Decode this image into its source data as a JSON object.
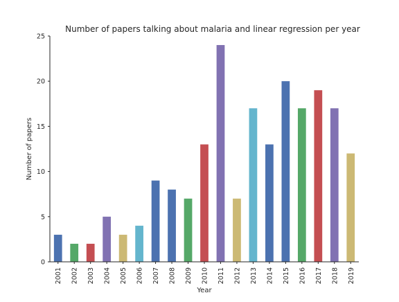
{
  "chart_data": {
    "type": "bar",
    "title": "Number of papers talking about malaria and linear regression per year",
    "xlabel": "Year",
    "ylabel": "Number of papers",
    "ylim": [
      0,
      25
    ],
    "yticks": [
      0,
      5,
      10,
      15,
      20,
      25
    ],
    "grid": false,
    "categories": [
      "2001",
      "2002",
      "2003",
      "2004",
      "2005",
      "2006",
      "2007",
      "2008",
      "2009",
      "2010",
      "2011",
      "2012",
      "2013",
      "2014",
      "2015",
      "2016",
      "2017",
      "2018",
      "2019"
    ],
    "values": [
      3,
      2,
      2,
      5,
      3,
      4,
      9,
      8,
      7,
      13,
      24,
      7,
      17,
      13,
      20,
      17,
      19,
      17,
      12
    ],
    "bar_colors": [
      "#4c72b0",
      "#55a868",
      "#c44e52",
      "#8172b2",
      "#ccb974",
      "#64b5cd",
      "#4c72b0",
      "#4c72b0",
      "#55a868",
      "#c44e52",
      "#8172b2",
      "#ccb974",
      "#64b5cd",
      "#4c72b0",
      "#4c72b0",
      "#55a868",
      "#c44e52",
      "#8172b2",
      "#ccb974"
    ]
  }
}
